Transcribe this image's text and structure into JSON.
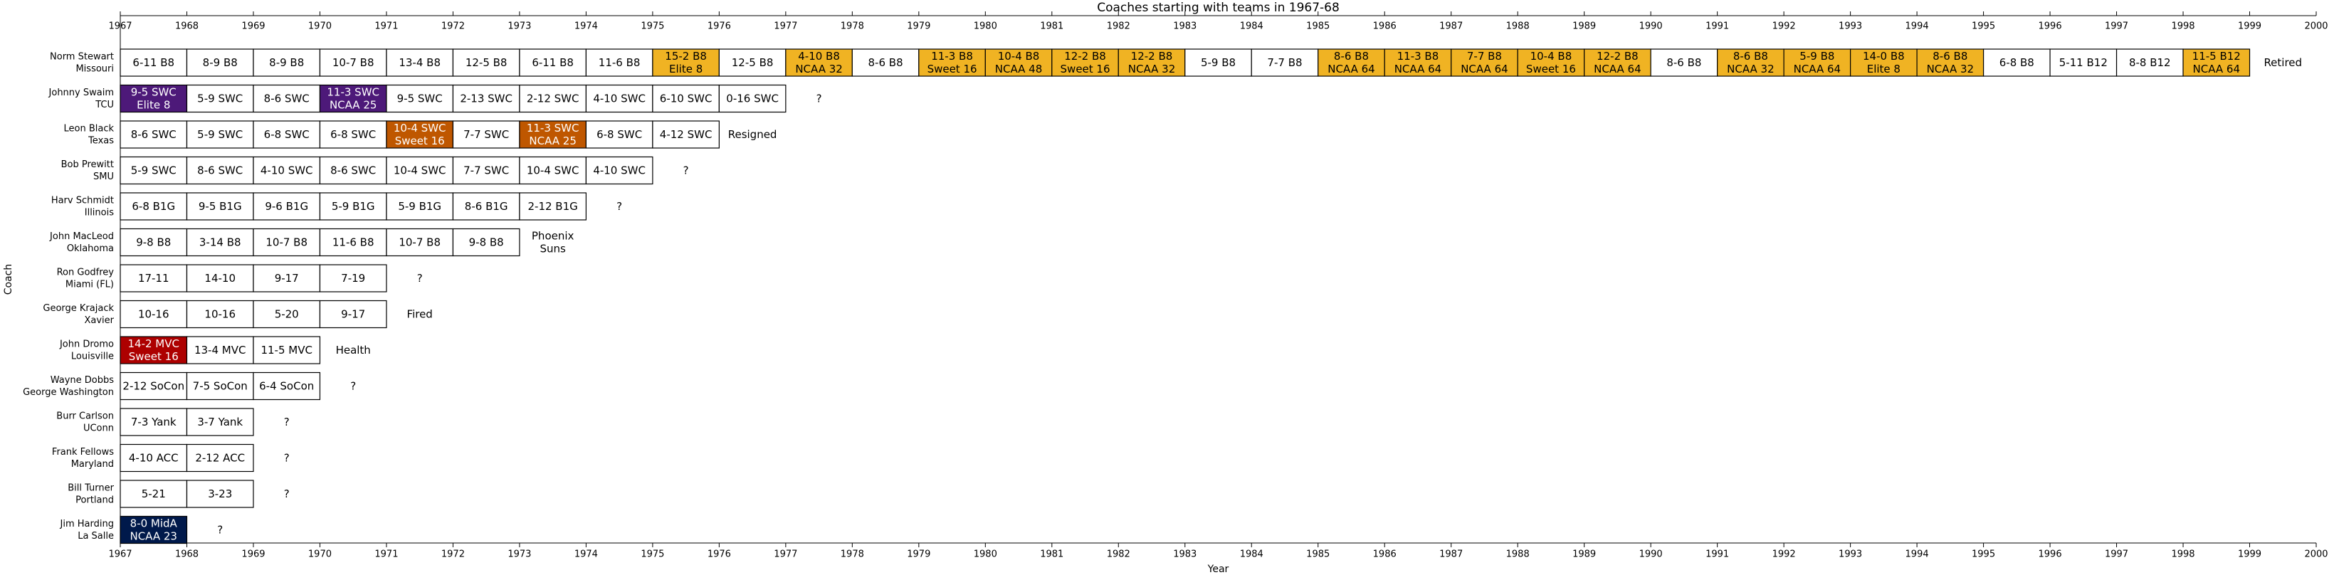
{
  "chart_data": {
    "type": "timeline",
    "title": "Coaches starting with teams in 1967-68",
    "xlabel": "Year",
    "ylabel": "Coach",
    "xlim": [
      1967,
      2000
    ],
    "x_ticks": [
      1967,
      1968,
      1969,
      1970,
      1971,
      1972,
      1973,
      1974,
      1975,
      1976,
      1977,
      1978,
      1979,
      1980,
      1981,
      1982,
      1983,
      1984,
      1985,
      1986,
      1987,
      1988,
      1989,
      1990,
      1991,
      1992,
      1993,
      1994,
      1995,
      1996,
      1997,
      1998,
      1999,
      2000
    ],
    "colors": {
      "plain": "#ffffff",
      "ncaa_gold": "#f0b323",
      "tcu_purple": "#4d1979",
      "texas_orange": "#bf5700",
      "louisville_red": "#ad0000",
      "lasalle_navy": "#00194b"
    },
    "rows": [
      {
        "coach": "Norm Stewart",
        "team": "Missouri",
        "outcome": "Retired",
        "seasons": [
          {
            "year": 1967,
            "label": "6-11 B8",
            "color": "plain"
          },
          {
            "year": 1968,
            "label": "8-9 B8",
            "color": "plain"
          },
          {
            "year": 1969,
            "label": "8-9 B8",
            "color": "plain"
          },
          {
            "year": 1970,
            "label": "10-7 B8",
            "color": "plain"
          },
          {
            "year": 1971,
            "label": "13-4 B8",
            "color": "plain"
          },
          {
            "year": 1972,
            "label": "12-5 B8",
            "color": "plain"
          },
          {
            "year": 1973,
            "label": "6-11 B8",
            "color": "plain"
          },
          {
            "year": 1974,
            "label": "11-6 B8",
            "color": "plain"
          },
          {
            "year": 1975,
            "label": "15-2 B8",
            "sub": "Elite 8",
            "color": "ncaa_gold"
          },
          {
            "year": 1976,
            "label": "12-5 B8",
            "color": "plain"
          },
          {
            "year": 1977,
            "label": "4-10 B8",
            "sub": "NCAA 32",
            "color": "ncaa_gold"
          },
          {
            "year": 1978,
            "label": "8-6 B8",
            "color": "plain"
          },
          {
            "year": 1979,
            "label": "11-3 B8",
            "sub": "Sweet 16",
            "color": "ncaa_gold"
          },
          {
            "year": 1980,
            "label": "10-4 B8",
            "sub": "NCAA 48",
            "color": "ncaa_gold"
          },
          {
            "year": 1981,
            "label": "12-2 B8",
            "sub": "Sweet 16",
            "color": "ncaa_gold"
          },
          {
            "year": 1982,
            "label": "12-2 B8",
            "sub": "NCAA 32",
            "color": "ncaa_gold"
          },
          {
            "year": 1983,
            "label": "5-9 B8",
            "color": "plain"
          },
          {
            "year": 1984,
            "label": "7-7 B8",
            "color": "plain"
          },
          {
            "year": 1985,
            "label": "8-6 B8",
            "sub": "NCAA 64",
            "color": "ncaa_gold"
          },
          {
            "year": 1986,
            "label": "11-3 B8",
            "sub": "NCAA 64",
            "color": "ncaa_gold"
          },
          {
            "year": 1987,
            "label": "7-7 B8",
            "sub": "NCAA 64",
            "color": "ncaa_gold"
          },
          {
            "year": 1988,
            "label": "10-4 B8",
            "sub": "Sweet 16",
            "color": "ncaa_gold"
          },
          {
            "year": 1989,
            "label": "12-2 B8",
            "sub": "NCAA 64",
            "color": "ncaa_gold"
          },
          {
            "year": 1990,
            "label": "8-6 B8",
            "color": "plain"
          },
          {
            "year": 1991,
            "label": "8-6 B8",
            "sub": "NCAA 32",
            "color": "ncaa_gold"
          },
          {
            "year": 1992,
            "label": "5-9 B8",
            "sub": "NCAA 64",
            "color": "ncaa_gold"
          },
          {
            "year": 1993,
            "label": "14-0 B8",
            "sub": "Elite 8",
            "color": "ncaa_gold"
          },
          {
            "year": 1994,
            "label": "8-6 B8",
            "sub": "NCAA 32",
            "color": "ncaa_gold"
          },
          {
            "year": 1995,
            "label": "6-8 B8",
            "color": "plain"
          },
          {
            "year": 1996,
            "label": "5-11 B12",
            "color": "plain"
          },
          {
            "year": 1997,
            "label": "8-8 B12",
            "color": "plain"
          },
          {
            "year": 1998,
            "label": "11-5 B12",
            "sub": "NCAA 64",
            "color": "ncaa_gold"
          }
        ]
      },
      {
        "coach": "Johnny Swaim",
        "team": "TCU",
        "outcome": "?",
        "seasons": [
          {
            "year": 1967,
            "label": "9-5 SWC",
            "sub": "Elite 8",
            "color": "tcu_purple"
          },
          {
            "year": 1968,
            "label": "5-9 SWC",
            "color": "plain"
          },
          {
            "year": 1969,
            "label": "8-6 SWC",
            "color": "plain"
          },
          {
            "year": 1970,
            "label": "11-3 SWC",
            "sub": "NCAA 25",
            "color": "tcu_purple"
          },
          {
            "year": 1971,
            "label": "9-5 SWC",
            "color": "plain"
          },
          {
            "year": 1972,
            "label": "2-13 SWC",
            "color": "plain"
          },
          {
            "year": 1973,
            "label": "2-12 SWC",
            "color": "plain"
          },
          {
            "year": 1974,
            "label": "4-10 SWC",
            "color": "plain"
          },
          {
            "year": 1975,
            "label": "6-10 SWC",
            "color": "plain"
          },
          {
            "year": 1976,
            "label": "0-16 SWC",
            "color": "plain"
          }
        ]
      },
      {
        "coach": "Leon Black",
        "team": "Texas",
        "outcome": "Resigned",
        "seasons": [
          {
            "year": 1967,
            "label": "8-6 SWC",
            "color": "plain"
          },
          {
            "year": 1968,
            "label": "5-9 SWC",
            "color": "plain"
          },
          {
            "year": 1969,
            "label": "6-8 SWC",
            "color": "plain"
          },
          {
            "year": 1970,
            "label": "6-8 SWC",
            "color": "plain"
          },
          {
            "year": 1971,
            "label": "10-4 SWC",
            "sub": "Sweet 16",
            "color": "texas_orange"
          },
          {
            "year": 1972,
            "label": "7-7 SWC",
            "color": "plain"
          },
          {
            "year": 1973,
            "label": "11-3 SWC",
            "sub": "NCAA 25",
            "color": "texas_orange"
          },
          {
            "year": 1974,
            "label": "6-8 SWC",
            "color": "plain"
          },
          {
            "year": 1975,
            "label": "4-12 SWC",
            "color": "plain"
          }
        ]
      },
      {
        "coach": "Bob Prewitt",
        "team": "SMU",
        "outcome": "?",
        "seasons": [
          {
            "year": 1967,
            "label": "5-9 SWC",
            "color": "plain"
          },
          {
            "year": 1968,
            "label": "8-6 SWC",
            "color": "plain"
          },
          {
            "year": 1969,
            "label": "4-10 SWC",
            "color": "plain"
          },
          {
            "year": 1970,
            "label": "8-6 SWC",
            "color": "plain"
          },
          {
            "year": 1971,
            "label": "10-4 SWC",
            "color": "plain"
          },
          {
            "year": 1972,
            "label": "7-7 SWC",
            "color": "plain"
          },
          {
            "year": 1973,
            "label": "10-4 SWC",
            "color": "plain"
          },
          {
            "year": 1974,
            "label": "4-10 SWC",
            "color": "plain"
          }
        ]
      },
      {
        "coach": "Harv Schmidt",
        "team": "Illinois",
        "outcome": "?",
        "seasons": [
          {
            "year": 1967,
            "label": "6-8 B1G",
            "color": "plain"
          },
          {
            "year": 1968,
            "label": "9-5 B1G",
            "color": "plain"
          },
          {
            "year": 1969,
            "label": "9-6 B1G",
            "color": "plain"
          },
          {
            "year": 1970,
            "label": "5-9 B1G",
            "color": "plain"
          },
          {
            "year": 1971,
            "label": "5-9 B1G",
            "color": "plain"
          },
          {
            "year": 1972,
            "label": "8-6 B1G",
            "color": "plain"
          },
          {
            "year": 1973,
            "label": "2-12 B1G",
            "color": "plain"
          }
        ]
      },
      {
        "coach": "John MacLeod",
        "team": "Oklahoma",
        "outcome": "Phoenix Suns",
        "seasons": [
          {
            "year": 1967,
            "label": "9-8 B8",
            "color": "plain"
          },
          {
            "year": 1968,
            "label": "3-14 B8",
            "color": "plain"
          },
          {
            "year": 1969,
            "label": "10-7 B8",
            "color": "plain"
          },
          {
            "year": 1970,
            "label": "11-6 B8",
            "color": "plain"
          },
          {
            "year": 1971,
            "label": "10-7 B8",
            "color": "plain"
          },
          {
            "year": 1972,
            "label": "9-8 B8",
            "color": "plain"
          }
        ]
      },
      {
        "coach": "Ron Godfrey",
        "team": "Miami (FL)",
        "outcome": "?",
        "seasons": [
          {
            "year": 1967,
            "label": "17-11",
            "color": "plain"
          },
          {
            "year": 1968,
            "label": "14-10",
            "color": "plain"
          },
          {
            "year": 1969,
            "label": "9-17",
            "color": "plain"
          },
          {
            "year": 1970,
            "label": "7-19",
            "color": "plain"
          }
        ]
      },
      {
        "coach": "George Krajack",
        "team": "Xavier",
        "outcome": "Fired",
        "seasons": [
          {
            "year": 1967,
            "label": "10-16",
            "color": "plain"
          },
          {
            "year": 1968,
            "label": "10-16",
            "color": "plain"
          },
          {
            "year": 1969,
            "label": "5-20",
            "color": "plain"
          },
          {
            "year": 1970,
            "label": "9-17",
            "color": "plain"
          }
        ]
      },
      {
        "coach": "John Dromo",
        "team": "Louisville",
        "outcome": "Health",
        "seasons": [
          {
            "year": 1967,
            "label": "14-2 MVC",
            "sub": "Sweet 16",
            "color": "louisville_red"
          },
          {
            "year": 1968,
            "label": "13-4 MVC",
            "color": "plain"
          },
          {
            "year": 1969,
            "label": "11-5 MVC",
            "color": "plain"
          }
        ]
      },
      {
        "coach": "Wayne Dobbs",
        "team": "George Washington",
        "outcome": "?",
        "seasons": [
          {
            "year": 1967,
            "label": "2-12 SoCon",
            "color": "plain"
          },
          {
            "year": 1968,
            "label": "7-5 SoCon",
            "color": "plain"
          },
          {
            "year": 1969,
            "label": "6-4 SoCon",
            "color": "plain"
          }
        ]
      },
      {
        "coach": "Burr Carlson",
        "team": "UConn",
        "outcome": "?",
        "seasons": [
          {
            "year": 1967,
            "label": "7-3 Yank",
            "color": "plain"
          },
          {
            "year": 1968,
            "label": "3-7 Yank",
            "color": "plain"
          }
        ]
      },
      {
        "coach": "Frank Fellows",
        "team": "Maryland",
        "outcome": "?",
        "seasons": [
          {
            "year": 1967,
            "label": "4-10 ACC",
            "color": "plain"
          },
          {
            "year": 1968,
            "label": "2-12 ACC",
            "color": "plain"
          }
        ]
      },
      {
        "coach": "Bill Turner",
        "team": "Portland",
        "outcome": "?",
        "seasons": [
          {
            "year": 1967,
            "label": "5-21",
            "color": "plain"
          },
          {
            "year": 1968,
            "label": "3-23",
            "color": "plain"
          }
        ]
      },
      {
        "coach": "Jim Harding",
        "team": "La Salle",
        "outcome": "?",
        "seasons": [
          {
            "year": 1967,
            "label": "8-0 MidA",
            "sub": "NCAA 23",
            "color": "lasalle_navy"
          }
        ]
      }
    ]
  }
}
